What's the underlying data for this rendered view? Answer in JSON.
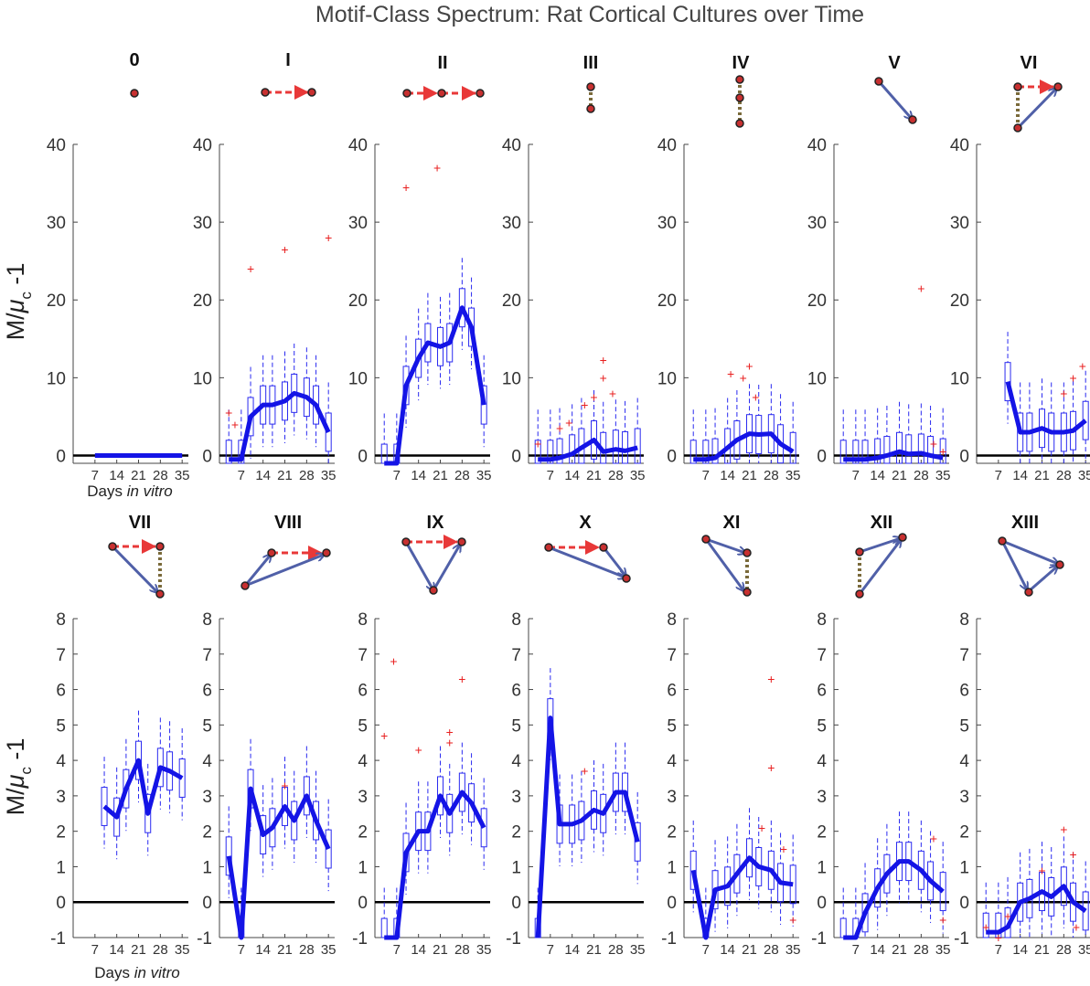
{
  "title": "Motif-Class Spectrum: Rat Cortical Cultures over Time",
  "ylabel_prefix": "M/",
  "ylabel_mu": "μ",
  "ylabel_sub": "c",
  "ylabel_suffix": " -1",
  "xlabel_prefix": "Days ",
  "xlabel_italic": "in vitro",
  "x_ticks": [
    7,
    14,
    21,
    28,
    35
  ],
  "colors": {
    "median_line": "#1414e6",
    "box": "#2a2af0",
    "outlier": "#e82020",
    "zero_line": "#000000",
    "arrow_red": "#e83838",
    "arrow_blue": "#5060a8",
    "dotted": "#7a6a3a",
    "node_fill": "#c83030"
  },
  "chart_data": [
    {
      "type": "line",
      "motif": "0",
      "days": [
        7,
        10,
        14,
        17,
        21,
        24,
        28,
        31,
        35
      ],
      "median": [
        0,
        0,
        0,
        0,
        0,
        0,
        0,
        0,
        0
      ],
      "ylim": [
        -1,
        40
      ],
      "yticks": [
        0,
        10,
        20,
        30,
        40
      ],
      "outliers": []
    },
    {
      "type": "line",
      "motif": "I",
      "days": [
        3,
        7,
        10,
        14,
        17,
        21,
        24,
        28,
        31,
        35
      ],
      "median": [
        -0.5,
        -0.5,
        5,
        6.5,
        6.5,
        7,
        8,
        7.5,
        6.5,
        3
      ],
      "ylim": [
        -1,
        40
      ],
      "yticks": [
        0,
        10,
        20,
        30,
        40
      ],
      "outliers": [
        [
          3,
          5.5
        ],
        [
          5,
          4
        ],
        [
          10,
          24
        ],
        [
          21,
          26.5
        ],
        [
          35,
          28
        ]
      ]
    },
    {
      "type": "line",
      "motif": "II",
      "days": [
        3,
        7,
        10,
        14,
        17,
        21,
        24,
        28,
        31,
        35
      ],
      "median": [
        -1,
        -1,
        9,
        12.5,
        14.5,
        14,
        14.5,
        19,
        16.5,
        6.5
      ],
      "ylim": [
        -1,
        40
      ],
      "yticks": [
        0,
        10,
        20,
        30,
        40
      ],
      "outliers": [
        [
          10,
          34.5
        ],
        [
          20,
          37
        ]
      ]
    },
    {
      "type": "line",
      "motif": "III",
      "days": [
        3,
        7,
        10,
        14,
        17,
        21,
        24,
        28,
        31,
        35
      ],
      "median": [
        -0.5,
        -0.5,
        -0.3,
        0.2,
        1,
        2,
        0.5,
        0.8,
        0.6,
        1
      ],
      "ylim": [
        -1,
        40
      ],
      "yticks": [
        0,
        10,
        20,
        30,
        40
      ],
      "outliers": [
        [
          3,
          1.5
        ],
        [
          10,
          3.5
        ],
        [
          13,
          4.2
        ],
        [
          18,
          6.5
        ],
        [
          21,
          7.5
        ],
        [
          24,
          12.3
        ],
        [
          24,
          10
        ],
        [
          27,
          8
        ]
      ]
    },
    {
      "type": "line",
      "motif": "IV",
      "days": [
        3,
        7,
        10,
        14,
        17,
        21,
        24,
        28,
        31,
        35
      ],
      "median": [
        -0.5,
        -0.5,
        -0.3,
        1,
        2,
        2.8,
        2.7,
        2.8,
        1.5,
        0.5
      ],
      "ylim": [
        -1,
        40
      ],
      "yticks": [
        0,
        10,
        20,
        30,
        40
      ],
      "outliers": [
        [
          15,
          10.5
        ],
        [
          19,
          10
        ],
        [
          21,
          11.5
        ],
        [
          23,
          7.5
        ]
      ]
    },
    {
      "type": "line",
      "motif": "V",
      "days": [
        3,
        7,
        10,
        14,
        17,
        21,
        24,
        28,
        31,
        35
      ],
      "median": [
        -0.5,
        -0.5,
        -0.5,
        -0.3,
        0,
        0.5,
        0.2,
        0.3,
        0,
        -0.3
      ],
      "ylim": [
        -1,
        40
      ],
      "yticks": [
        0,
        10,
        20,
        30,
        40
      ],
      "outliers": [
        [
          28,
          21.5
        ],
        [
          32,
          1.5
        ],
        [
          35,
          0.5
        ]
      ]
    },
    {
      "type": "line",
      "motif": "VI",
      "days": [
        10,
        14,
        17,
        21,
        24,
        28,
        31,
        35
      ],
      "median": [
        9.5,
        3,
        3,
        3.5,
        3,
        3,
        3.2,
        4.5
      ],
      "ylim": [
        -1,
        40
      ],
      "yticks": [
        0,
        10,
        20,
        30,
        40
      ],
      "outliers": [
        [
          28,
          8
        ],
        [
          31,
          10
        ],
        [
          34,
          11.5
        ]
      ]
    },
    {
      "type": "line",
      "motif": "VII",
      "days": [
        10,
        14,
        17,
        21,
        24,
        28,
        31,
        35
      ],
      "median": [
        2.7,
        2.4,
        3.2,
        4,
        2.5,
        3.8,
        3.7,
        3.5
      ],
      "ylim": [
        -1,
        8
      ],
      "yticks": [
        -1,
        0,
        1,
        2,
        3,
        4,
        5,
        6,
        7,
        8
      ],
      "outliers": []
    },
    {
      "type": "line",
      "motif": "VIII",
      "days": [
        3,
        7,
        10,
        14,
        17,
        21,
        24,
        28,
        31,
        35
      ],
      "median": [
        1.3,
        -1,
        3.2,
        1.9,
        2.1,
        2.7,
        2.3,
        3,
        2.3,
        1.5
      ],
      "ylim": [
        -1,
        8
      ],
      "yticks": [
        -1,
        0,
        1,
        2,
        3,
        4,
        5,
        6,
        7,
        8
      ],
      "outliers": [
        [
          21,
          3.3
        ]
      ]
    },
    {
      "type": "line",
      "motif": "IX",
      "days": [
        3,
        7,
        10,
        14,
        17,
        21,
        24,
        28,
        31,
        35
      ],
      "median": [
        -1,
        -1,
        1.4,
        2,
        2,
        3,
        2.5,
        3.1,
        2.8,
        2.1
      ],
      "ylim": [
        -1,
        8
      ],
      "yticks": [
        -1,
        0,
        1,
        2,
        3,
        4,
        5,
        6,
        7,
        8
      ],
      "outliers": [
        [
          3,
          4.7
        ],
        [
          6,
          6.8
        ],
        [
          14,
          4.3
        ],
        [
          24,
          4.8
        ],
        [
          24,
          4.5
        ],
        [
          28,
          6.3
        ]
      ]
    },
    {
      "type": "line",
      "motif": "X",
      "days": [
        3,
        7,
        10,
        14,
        17,
        21,
        24,
        28,
        31,
        35
      ],
      "median": [
        -1,
        5.2,
        2.2,
        2.2,
        2.3,
        2.6,
        2.5,
        3.1,
        3.1,
        1.7
      ],
      "ylim": [
        -1,
        8
      ],
      "yticks": [
        -1,
        0,
        1,
        2,
        3,
        4,
        5,
        6,
        7,
        8
      ],
      "outliers": [
        [
          18,
          3.7
        ]
      ]
    },
    {
      "type": "line",
      "motif": "XI",
      "days": [
        3,
        7,
        10,
        14,
        17,
        21,
        24,
        28,
        31,
        35
      ],
      "median": [
        0.9,
        -1,
        0.35,
        0.45,
        0.8,
        1.25,
        1,
        0.9,
        0.55,
        0.5
      ],
      "ylim": [
        -1,
        8
      ],
      "yticks": [
        -1,
        0,
        1,
        2,
        3,
        4,
        5,
        6,
        7,
        8
      ],
      "outliers": [
        [
          28,
          6.3
        ],
        [
          28,
          3.8
        ],
        [
          25,
          2.1
        ],
        [
          32,
          1.5
        ],
        [
          35,
          -0.5
        ]
      ]
    },
    {
      "type": "line",
      "motif": "XII",
      "days": [
        3,
        7,
        10,
        14,
        17,
        21,
        24,
        28,
        31,
        35
      ],
      "median": [
        -1,
        -1,
        -0.3,
        0.4,
        0.8,
        1.15,
        1.15,
        0.9,
        0.6,
        0.3
      ],
      "ylim": [
        -1,
        8
      ],
      "yticks": [
        -1,
        0,
        1,
        2,
        3,
        4,
        5,
        6,
        7,
        8
      ],
      "outliers": [
        [
          32,
          1.8
        ],
        [
          35,
          -0.5
        ]
      ]
    },
    {
      "type": "line",
      "motif": "XIII",
      "days": [
        3,
        7,
        10,
        14,
        17,
        21,
        24,
        28,
        31,
        35
      ],
      "median": [
        -0.85,
        -0.85,
        -0.7,
        0,
        0.1,
        0.3,
        0.15,
        0.45,
        0,
        -0.25
      ],
      "ylim": [
        -1,
        8
      ],
      "yticks": [
        -1,
        0,
        1,
        2,
        3,
        4,
        5,
        6,
        7,
        8
      ],
      "outliers": [
        [
          3,
          -0.7
        ],
        [
          7,
          -1
        ],
        [
          21,
          0.9
        ],
        [
          28,
          2.05
        ],
        [
          31,
          1.35
        ],
        [
          32,
          -0.7
        ],
        [
          10,
          -0.4
        ]
      ]
    }
  ]
}
